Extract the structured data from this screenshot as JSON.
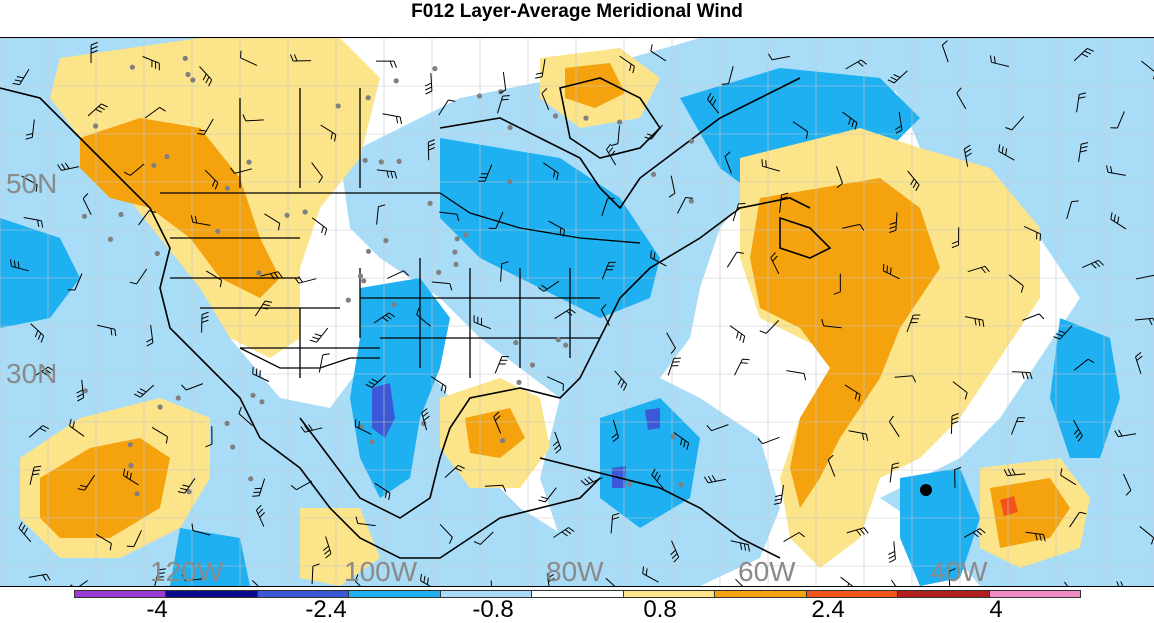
{
  "title": "F012 Layer-Average Meridional Wind",
  "lat_labels": [
    "50N",
    "30N"
  ],
  "lon_labels": [
    "120W",
    "100W",
    "80W",
    "60W",
    "40W"
  ],
  "colorbar": {
    "colors": [
      "#9b3bd1",
      "#0b0b8c",
      "#3b59d6",
      "#1eb0f0",
      "#a8dcf7",
      "#ffffff",
      "#fbe48a",
      "#f5a20f",
      "#f2541c",
      "#b01e1e",
      "#f08bc3"
    ],
    "tick_labels": [
      "-4",
      "-2.4",
      "-0.8",
      "0.8",
      "2.4",
      "4"
    ]
  },
  "palette": {
    "light_blue": "#a8dcf7",
    "blue": "#1eb0f0",
    "dark_blue": "#3b59d6",
    "yellow": "#fbe48a",
    "orange": "#f5a20f",
    "red": "#f2541c",
    "grid": "#c8c8c8",
    "station": "#808080"
  }
}
